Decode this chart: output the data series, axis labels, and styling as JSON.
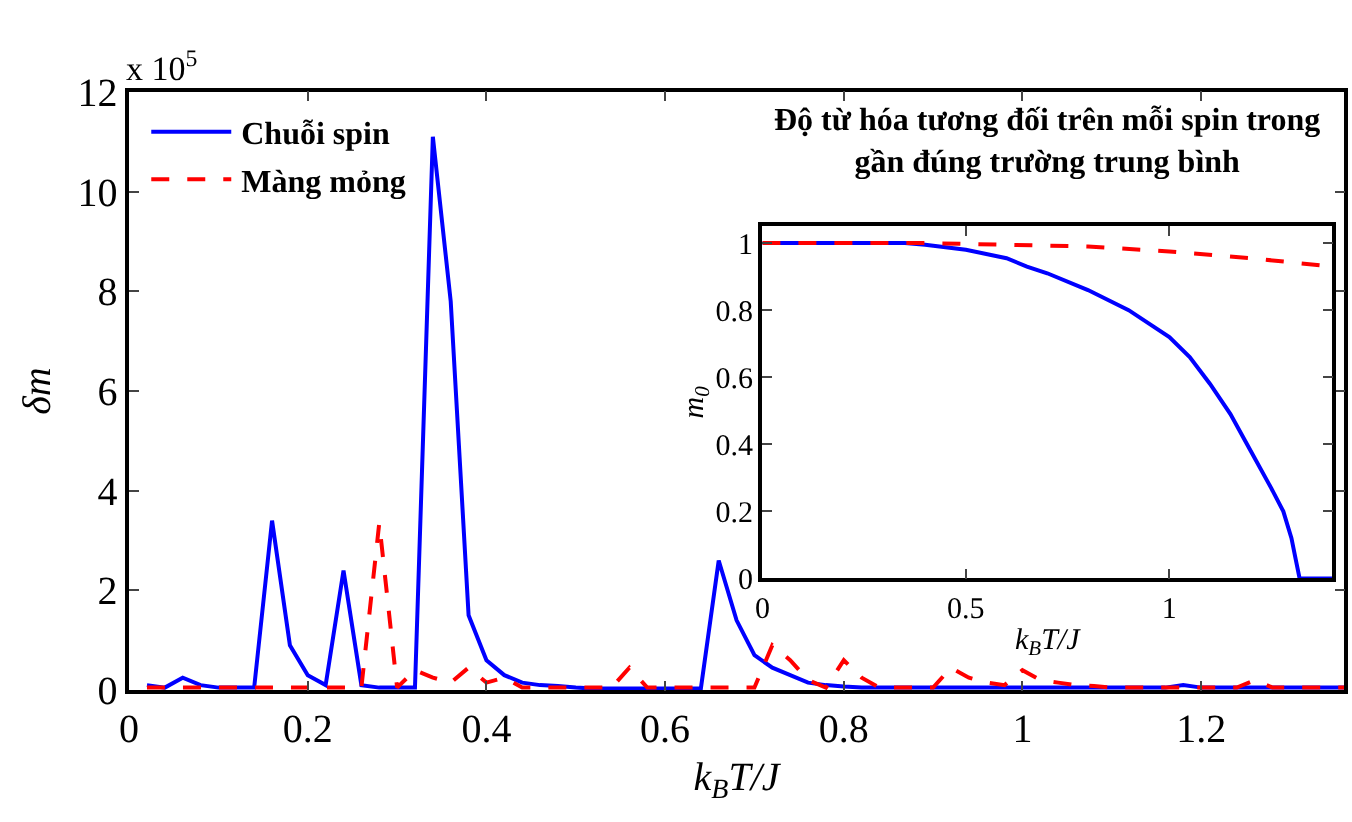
{
  "chart_data": [
    {
      "type": "line",
      "xlabel": "k$_{B}$T/J",
      "ylabel": "δm",
      "annotations": [
        "x 10$^{5}$"
      ],
      "x": [
        0.02,
        0.04,
        0.06,
        0.08,
        0.1,
        0.12,
        0.14,
        0.16,
        0.18,
        0.2,
        0.22,
        0.24,
        0.26,
        0.28,
        0.3,
        0.32,
        0.34,
        0.36,
        0.38,
        0.4,
        0.42,
        0.44,
        0.46,
        0.48,
        0.5,
        0.52,
        0.54,
        0.56,
        0.58,
        0.6,
        0.62,
        0.64,
        0.66,
        0.68,
        0.7,
        0.72,
        0.74,
        0.76,
        0.78,
        0.8,
        0.82,
        0.84,
        0.86,
        0.88,
        0.9,
        0.92,
        0.94,
        0.96,
        0.98,
        1.0,
        1.02,
        1.04,
        1.06,
        1.08,
        1.1,
        1.12,
        1.14,
        1.16,
        1.18,
        1.2,
        1.22,
        1.24,
        1.26,
        1.28,
        1.3,
        1.32,
        1.34,
        1.36
      ],
      "series": [
        {
          "name": "Chuỗi spin",
          "color": "#0000ff",
          "line_style": "solid",
          "values": [
            0.1,
            0.05,
            0.25,
            0.1,
            0.05,
            0.05,
            0.05,
            3.4,
            0.9,
            0.3,
            0.1,
            2.4,
            0.1,
            0.05,
            0.05,
            0.05,
            11.1,
            7.8,
            1.5,
            0.6,
            0.3,
            0.15,
            0.1,
            0.08,
            0.05,
            0.03,
            0.03,
            0.03,
            0.03,
            0.03,
            0.03,
            0.03,
            2.6,
            1.4,
            0.7,
            0.45,
            0.3,
            0.15,
            0.1,
            0.07,
            0.05,
            0.05,
            0.05,
            0.05,
            0.05,
            0.05,
            0.05,
            0.05,
            0.05,
            0.05,
            0.05,
            0.05,
            0.05,
            0.05,
            0.05,
            0.05,
            0.05,
            0.05,
            0.1,
            0.05,
            0.05,
            0.05,
            0.05,
            0.05,
            0.05,
            0.05,
            0.05,
            0.05
          ]
        },
        {
          "name": "Màng mỏng",
          "color": "#ff0000",
          "line_style": "dashed",
          "values": [
            0.05,
            0.05,
            0.05,
            0.05,
            0.05,
            0.05,
            0.05,
            0.05,
            0.05,
            0.05,
            0.05,
            0.05,
            0.05,
            3.35,
            0.05,
            0.4,
            0.25,
            0.15,
            0.45,
            0.15,
            0.25,
            0.05,
            0.05,
            0.05,
            0.05,
            0.05,
            0.05,
            0.45,
            0.05,
            0.05,
            0.05,
            0.05,
            0.05,
            0.05,
            0.05,
            0.9,
            0.6,
            0.2,
            0.05,
            0.6,
            0.25,
            0.05,
            0.05,
            0.05,
            0.05,
            0.45,
            0.25,
            0.15,
            0.1,
            0.4,
            0.2,
            0.15,
            0.1,
            0.08,
            0.05,
            0.05,
            0.05,
            0.05,
            0.05,
            0.05,
            0.05,
            0.05,
            0.2,
            0.05,
            0.05,
            0.05,
            0.05,
            0.05
          ]
        }
      ],
      "xlim": [
        0,
        1.36
      ],
      "xticks": [
        0,
        0.2,
        0.4,
        0.6,
        0.8,
        1,
        1.2
      ],
      "ylim": [
        0,
        12
      ],
      "yticks": [
        0,
        2,
        4,
        6,
        8,
        10,
        12
      ],
      "legend": "top left",
      "marker": "none"
    },
    {
      "type": "line",
      "title": "Độ từ hóa tương đối trên mỗi spin trong gần đúng trường trung bình",
      "xlabel": "k$_{B}$T/J",
      "ylabel": "m$_{0}$",
      "series": [
        {
          "color": "#0000ff",
          "line_style": "solid",
          "x": [
            0,
            0.1,
            0.2,
            0.3,
            0.35,
            0.4,
            0.5,
            0.6,
            0.65,
            0.7,
            0.8,
            0.9,
            0.95,
            1.0,
            1.05,
            1.1,
            1.15,
            1.2,
            1.25,
            1.28,
            1.3,
            1.31,
            1.32,
            1.36,
            1.4
          ],
          "values": [
            1,
            1,
            1,
            1,
            1,
            0.995,
            0.98,
            0.955,
            0.93,
            0.91,
            0.86,
            0.8,
            0.76,
            0.72,
            0.66,
            0.58,
            0.49,
            0.38,
            0.27,
            0.2,
            0.12,
            0.06,
            0.0,
            0.0,
            0.0
          ]
        },
        {
          "color": "#ff0000",
          "line_style": "dashed",
          "x": [
            0,
            0.2,
            0.4,
            0.6,
            0.8,
            1.0,
            1.2,
            1.4
          ],
          "values": [
            1,
            1,
            1,
            0.995,
            0.99,
            0.975,
            0.955,
            0.93
          ]
        }
      ],
      "xlim": [
        0,
        1.4
      ],
      "xticks": [
        0,
        0.5,
        1
      ],
      "ylim": [
        0,
        1.05
      ],
      "yticks": [
        0,
        0.2,
        0.4,
        0.6,
        0.8,
        1
      ],
      "legend": false,
      "marker": "none"
    }
  ]
}
